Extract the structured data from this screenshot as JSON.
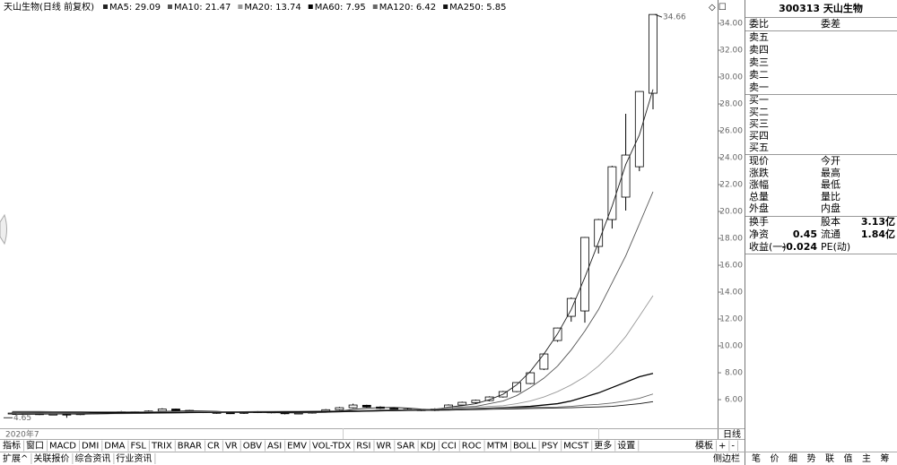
{
  "chart_data": {
    "type": "candlestick",
    "title": "天山生物(日线 前复权)",
    "open": [
      4.97,
      5.0,
      4.95,
      4.9,
      4.92,
      4.9,
      4.95,
      5.0,
      5.05,
      5.1,
      5.05,
      5.15,
      5.3,
      5.2,
      5.1,
      5.05,
      5.02,
      4.98,
      5.05,
      5.1,
      5.02,
      4.96,
      5.0,
      5.1,
      5.25,
      5.4,
      5.58,
      5.45,
      5.35,
      5.28,
      5.25,
      5.2,
      5.3,
      5.6,
      5.78,
      5.93,
      6.2,
      6.6,
      7.2,
      8.27,
      10.4,
      12.2,
      12.6,
      17.4,
      19.4,
      21.07,
      23.33,
      28.8
    ],
    "high": [
      5.06,
      5.05,
      5.0,
      4.98,
      4.96,
      5.0,
      5.05,
      5.1,
      5.16,
      5.14,
      5.2,
      5.36,
      5.34,
      5.24,
      5.14,
      5.1,
      5.06,
      5.1,
      5.15,
      5.13,
      5.05,
      5.05,
      5.15,
      5.3,
      5.46,
      5.7,
      5.62,
      5.5,
      5.4,
      5.34,
      5.3,
      5.36,
      5.65,
      5.85,
      6.0,
      6.25,
      6.65,
      7.3,
      8.05,
      9.45,
      11.35,
      13.6,
      18.1,
      19.45,
      23.4,
      27.27,
      28.95,
      34.66
    ],
    "low": [
      4.9,
      4.9,
      4.85,
      4.85,
      4.65,
      4.85,
      4.9,
      4.95,
      5.0,
      4.98,
      5.0,
      5.1,
      5.15,
      5.05,
      5.0,
      4.95,
      4.93,
      4.94,
      5.0,
      4.98,
      4.9,
      4.91,
      4.96,
      5.05,
      5.2,
      5.35,
      5.4,
      5.3,
      5.25,
      5.2,
      5.15,
      5.15,
      5.25,
      5.55,
      5.7,
      5.88,
      6.15,
      6.55,
      7.15,
      8.2,
      10.3,
      11.8,
      11.73,
      16.87,
      18.73,
      20.07,
      23.0,
      27.6
    ],
    "close": [
      5.0,
      4.95,
      4.9,
      4.92,
      4.88,
      4.95,
      5.0,
      5.05,
      5.1,
      5.02,
      5.15,
      5.3,
      5.2,
      5.1,
      5.05,
      5.0,
      4.98,
      5.05,
      5.1,
      5.02,
      4.95,
      5.0,
      5.1,
      5.25,
      5.4,
      5.6,
      5.45,
      5.35,
      5.3,
      5.25,
      5.2,
      5.3,
      5.6,
      5.8,
      5.95,
      6.2,
      6.6,
      7.27,
      8.0,
      9.4,
      11.33,
      13.53,
      18.07,
      19.4,
      23.33,
      24.2,
      28.93,
      34.66
    ],
    "candle_up_color": "#ffffff",
    "candle_down_color": "#000000",
    "candle_edge_color": "#000000",
    "series": [
      {
        "name": "MA5: 29.09",
        "color": "#222222",
        "values": [
          4.98,
          4.97,
          4.96,
          4.95,
          4.93,
          4.92,
          4.93,
          4.96,
          5.0,
          5.02,
          5.06,
          5.12,
          5.15,
          5.17,
          5.16,
          5.13,
          5.07,
          5.04,
          5.04,
          5.03,
          5.02,
          5.02,
          5.03,
          5.06,
          5.14,
          5.27,
          5.36,
          5.41,
          5.42,
          5.37,
          5.3,
          5.26,
          5.45,
          5.55,
          5.7,
          6.0,
          6.4,
          7.1,
          8.1,
          9.4,
          10.9,
          12.7,
          15.1,
          17.7,
          20.4,
          23.5,
          25.7,
          29.09
        ]
      },
      {
        "name": "MA10: 21.47",
        "color": "#555555",
        "values": [
          5.0,
          4.99,
          4.98,
          4.97,
          4.96,
          4.95,
          4.95,
          4.95,
          4.96,
          4.97,
          4.99,
          5.02,
          5.06,
          5.09,
          5.11,
          5.1,
          5.1,
          5.1,
          5.09,
          5.08,
          5.07,
          5.05,
          5.04,
          5.05,
          5.08,
          5.15,
          5.2,
          5.23,
          5.24,
          5.25,
          5.26,
          5.3,
          5.4,
          5.45,
          5.5,
          5.7,
          5.9,
          6.3,
          6.9,
          7.6,
          8.5,
          9.7,
          11.1,
          12.7,
          14.7,
          16.7,
          19.07,
          21.47
        ]
      },
      {
        "name": "MA20: 13.74",
        "color": "#999999",
        "values": [
          5.02,
          5.02,
          5.01,
          5.0,
          4.99,
          4.98,
          4.97,
          4.97,
          4.97,
          4.97,
          4.98,
          4.99,
          5.0,
          5.02,
          5.04,
          5.05,
          5.06,
          5.07,
          5.08,
          5.09,
          5.09,
          5.09,
          5.08,
          5.08,
          5.09,
          5.11,
          5.14,
          5.16,
          5.18,
          5.2,
          5.22,
          5.25,
          5.4,
          5.42,
          5.45,
          5.5,
          5.55,
          5.7,
          5.9,
          6.2,
          6.6,
          7.1,
          7.7,
          8.5,
          9.5,
          10.7,
          12.2,
          13.74
        ]
      },
      {
        "name": "MA60: 7.95",
        "color": "#000000",
        "values": [
          5.08,
          5.08,
          5.07,
          5.07,
          5.06,
          5.06,
          5.05,
          5.05,
          5.05,
          5.05,
          5.05,
          5.05,
          5.06,
          5.06,
          5.06,
          5.07,
          5.07,
          5.07,
          5.08,
          5.08,
          5.08,
          5.09,
          5.09,
          5.1,
          5.11,
          5.13,
          5.15,
          5.17,
          5.19,
          5.21,
          5.23,
          5.26,
          5.3,
          5.32,
          5.34,
          5.37,
          5.4,
          5.45,
          5.5,
          5.6,
          5.7,
          5.9,
          6.2,
          6.5,
          6.9,
          7.3,
          7.7,
          7.95
        ]
      },
      {
        "name": "MA120: 6.42",
        "color": "#666666",
        "values": [
          5.12,
          5.12,
          5.12,
          5.11,
          5.11,
          5.11,
          5.1,
          5.1,
          5.1,
          5.1,
          5.1,
          5.1,
          5.1,
          5.1,
          5.1,
          5.11,
          5.11,
          5.11,
          5.12,
          5.12,
          5.13,
          5.13,
          5.14,
          5.15,
          5.16,
          5.17,
          5.18,
          5.2,
          5.22,
          5.24,
          5.26,
          5.28,
          5.3,
          5.32,
          5.34,
          5.36,
          5.38,
          5.4,
          5.42,
          5.44,
          5.45,
          5.5,
          5.6,
          5.65,
          5.75,
          5.9,
          6.1,
          6.42
        ]
      },
      {
        "name": "MA250: 5.85",
        "color": "#111111",
        "values": [
          4.9,
          4.91,
          4.92,
          4.93,
          4.94,
          4.95,
          4.96,
          4.97,
          4.98,
          4.99,
          5.0,
          5.01,
          5.02,
          5.03,
          5.04,
          5.05,
          5.06,
          5.07,
          5.08,
          5.09,
          5.1,
          5.11,
          5.12,
          5.13,
          5.14,
          5.15,
          5.16,
          5.17,
          5.18,
          5.19,
          5.2,
          5.21,
          5.22,
          5.24,
          5.26,
          5.28,
          5.3,
          5.32,
          5.34,
          5.36,
          5.38,
          5.4,
          5.43,
          5.46,
          5.5,
          5.6,
          5.7,
          5.85
        ]
      }
    ],
    "ylim": [
      3.87,
      35.27
    ],
    "yticks": [
      {
        "value": 6,
        "label": "6.00"
      },
      {
        "value": 8,
        "label": "8.00"
      },
      {
        "value": 10,
        "label": "10.00"
      },
      {
        "value": 12,
        "label": "12.00"
      },
      {
        "value": 14,
        "label": "14.00"
      },
      {
        "value": 16,
        "label": "16.00"
      },
      {
        "value": 18,
        "label": "18.00"
      },
      {
        "value": 20,
        "label": "20.00"
      },
      {
        "value": 22,
        "label": "22.00"
      },
      {
        "value": 24,
        "label": "24.00"
      },
      {
        "value": 26,
        "label": "26.00"
      },
      {
        "value": 28,
        "label": "28.00"
      },
      {
        "value": 30,
        "label": "30.00"
      },
      {
        "value": 32,
        "label": "32.00"
      },
      {
        "value": 34,
        "label": "34.00"
      }
    ],
    "high_label": {
      "value": 34.66,
      "label": "34.66"
    },
    "low_label": {
      "value": 4.65,
      "label": "4.65"
    },
    "x_label": "2020年7",
    "period_label": "日线"
  },
  "quote_panel": {
    "title": "300313 天山生物",
    "head": [
      "委比",
      "委差"
    ],
    "sell": [
      "卖五",
      "卖四",
      "卖三",
      "卖二",
      "卖一"
    ],
    "buy": [
      "买一",
      "买二",
      "买三",
      "买四",
      "买五"
    ],
    "stats": [
      [
        "现价",
        "今开"
      ],
      [
        "涨跌",
        "最高"
      ],
      [
        "涨幅",
        "最低"
      ],
      [
        "总量",
        "量比"
      ],
      [
        "外盘",
        "内盘"
      ]
    ],
    "finance": [
      {
        "label": "换手",
        "label2": "股本",
        "value2": "3.13亿"
      },
      {
        "label": "净资",
        "value": "0.45",
        "label2": "流通",
        "value2": "1.84亿"
      },
      {
        "label": "收益(一)",
        "value": "-0.024",
        "label2": "PE(动)"
      }
    ]
  },
  "toolbar": {
    "tabs": [
      "指标",
      "窗口",
      "MACD",
      "DMI",
      "DMA",
      "FSL",
      "TRIX",
      "BRAR",
      "CR",
      "VR",
      "OBV",
      "ASI",
      "EMV",
      "VOL-TDX",
      "RSI",
      "WR",
      "SAR",
      "KDJ",
      "CCI",
      "ROC",
      "MTM",
      "BOLL",
      "PSY",
      "MCST",
      "更多",
      "设置"
    ],
    "right": [
      "模板",
      "+",
      "-"
    ],
    "bottom_tabs": [
      "扩展^",
      "关联报价",
      "综合资讯",
      "行业资讯"
    ],
    "side": [
      "侧边栏",
      "笔",
      "价",
      "细",
      "势",
      "联",
      "值",
      "主",
      "筹"
    ]
  }
}
